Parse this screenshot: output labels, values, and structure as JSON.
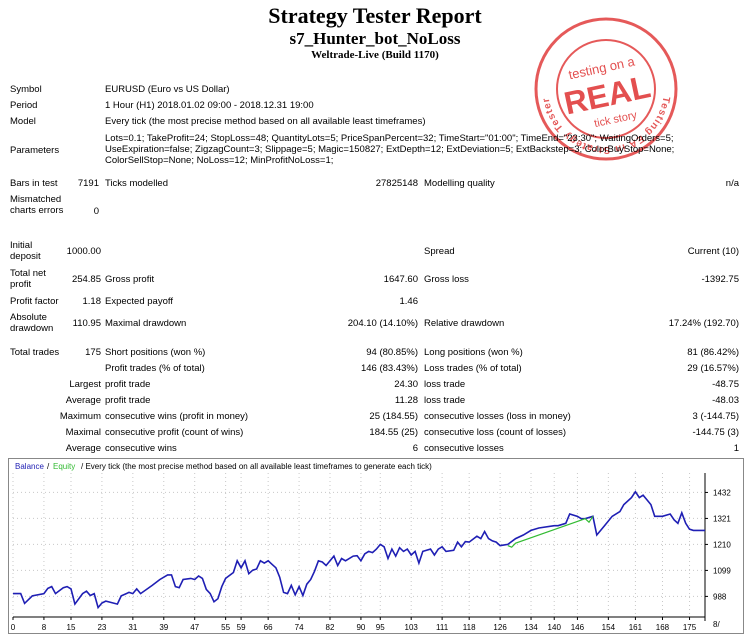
{
  "report": {
    "title": "Strategy Tester Report",
    "subtitle": "s7_Hunter_bot_NoLoss",
    "server": "Weltrade-Live (Build 1170)"
  },
  "stamp": {
    "line1": "testing on a",
    "line2": "REAL",
    "line3": "tick story",
    "ring_text": "Testing EA in Strategy Tester",
    "color": "#e03c3c"
  },
  "info": {
    "symbol_label": "Symbol",
    "symbol_value": "EURUSD (Euro vs US Dollar)",
    "period_label": "Period",
    "period_value": "1 Hour (H1) 2018.01.02 09:00 - 2018.12.31 19:00",
    "model_label": "Model",
    "model_value": "Every tick (the most precise method based on all available least timeframes)",
    "parameters_label": "Parameters",
    "parameters_value": "Lots=0.1; TakeProfit=24; StopLoss=48; QuantityLots=5; PriceSpanPercent=32; TimeStart=\"01:00\"; TimeEnd=\"23:30\"; WaitingOrders=5; UseExpiration=false; ZigzagCount=3; Slippage=5; Magic=150827; ExtDepth=12; ExtDeviation=5; ExtBackstep=3; ColorBuyStop=None; ColorSellStop=None; NoLoss=12; MinProfitNoLoss=1;",
    "bars_label": "Bars in test",
    "bars_value": "7191",
    "ticks_label": "Ticks modelled",
    "ticks_value": "27825148",
    "quality_label": "Modelling quality",
    "quality_value": "n/a",
    "mismatch_label": "Mismatched charts errors",
    "mismatch_value": "0"
  },
  "stats": {
    "deposit_label": "Initial deposit",
    "deposit_value": "1000.00",
    "spread_label": "Spread",
    "spread_value": "Current (10)",
    "net_label": "Total net profit",
    "net_value": "254.85",
    "gross_profit_label": "Gross profit",
    "gross_profit_value": "1647.60",
    "gross_loss_label": "Gross loss",
    "gross_loss_value": "-1392.75",
    "pf_label": "Profit factor",
    "pf_value": "1.18",
    "payoff_label": "Expected payoff",
    "payoff_value": "1.46",
    "absdd_label": "Absolute drawdown",
    "absdd_value": "110.95",
    "maxdd_label": "Maximal drawdown",
    "maxdd_value": "204.10 (14.10%)",
    "reldd_label": "Relative drawdown",
    "reldd_value": "17.24% (192.70)",
    "trades_label": "Total trades",
    "trades_value": "175",
    "short_label": "Short positions (won %)",
    "short_value": "94 (80.85%)",
    "long_label": "Long positions (won %)",
    "long_value": "81 (86.42%)",
    "profit_trades_label": "Profit trades (% of total)",
    "profit_trades_value": "146 (83.43%)",
    "loss_trades_label": "Loss trades (% of total)",
    "loss_trades_value": "29 (16.57%)",
    "largest_label": "Largest",
    "largest_profit_label": "profit trade",
    "largest_profit_value": "24.30",
    "largest_loss_label": "loss trade",
    "largest_loss_value": "-48.75",
    "average_label": "Average",
    "average_profit_label": "profit trade",
    "average_profit_value": "11.28",
    "average_loss_label": "loss trade",
    "average_loss_value": "-48.03",
    "maximum_label": "Maximum",
    "max_cons_wins_label": "consecutive wins (profit in money)",
    "max_cons_wins_value": "25 (184.55)",
    "max_cons_losses_label": "consecutive losses (loss in money)",
    "max_cons_losses_value": "3 (-144.75)",
    "maximal_label": "Maximal",
    "maximal_profit_label": "consecutive profit (count of wins)",
    "maximal_profit_value": "184.55 (25)",
    "maximal_loss_label": "consecutive loss (count of losses)",
    "maximal_loss_value": "-144.75 (3)",
    "avg2_label": "Average",
    "avg_cons_wins_label": "consecutive wins",
    "avg_cons_wins_value": "6",
    "avg_cons_losses_label": "consecutive losses",
    "avg_cons_losses_value": "1"
  },
  "chart_data": {
    "type": "line",
    "legend": {
      "balance": "Balance",
      "equity": "Equity",
      "rest": "/ Every tick (the most precise method based on all available least timeframes to generate each tick)"
    },
    "colors": {
      "balance": "#1f1fb4",
      "equity": "#33bb33"
    },
    "xlim": [
      0,
      179
    ],
    "ylim": [
      900,
      1515
    ],
    "x_ticks": [
      0,
      8,
      15,
      23,
      31,
      39,
      47,
      55,
      59,
      66,
      74,
      82,
      90,
      95,
      103,
      111,
      118,
      126,
      134,
      140,
      146,
      154,
      161,
      168,
      175
    ],
    "y_ticks": [
      988,
      1099,
      1210,
      1321,
      1432
    ],
    "y_axis_extra_label": "8/",
    "series": [
      {
        "name": "Balance",
        "points": [
          [
            0,
            1000
          ],
          [
            2,
            1000
          ],
          [
            3,
            958
          ],
          [
            5,
            990
          ],
          [
            8,
            1000
          ],
          [
            9,
            1022
          ],
          [
            10,
            1030
          ],
          [
            11,
            1000
          ],
          [
            13,
            1025
          ],
          [
            14,
            1030
          ],
          [
            15,
            1020
          ],
          [
            16,
            955
          ],
          [
            18,
            1000
          ],
          [
            19,
            1010
          ],
          [
            20,
            992
          ],
          [
            21,
            1000
          ],
          [
            22,
            940
          ],
          [
            23,
            960
          ],
          [
            24,
            968
          ],
          [
            27,
            955
          ],
          [
            28,
            990
          ],
          [
            30,
            1005
          ],
          [
            31,
            1000
          ],
          [
            32,
            1020
          ],
          [
            33,
            1000
          ],
          [
            36,
            1035
          ],
          [
            38,
            1060
          ],
          [
            40,
            1080
          ],
          [
            41,
            1080
          ],
          [
            42,
            1030
          ],
          [
            43,
            1025
          ],
          [
            44,
            1060
          ],
          [
            46,
            1065
          ],
          [
            47,
            1060
          ],
          [
            48,
            1075
          ],
          [
            49,
            1065
          ],
          [
            50,
            1018
          ],
          [
            51,
            1000
          ],
          [
            52,
            965
          ],
          [
            53,
            978
          ],
          [
            54,
            1030
          ],
          [
            55,
            1065
          ],
          [
            57,
            1090
          ],
          [
            58,
            1140
          ],
          [
            59,
            1110
          ],
          [
            60,
            1140
          ],
          [
            61,
            1085
          ],
          [
            62,
            1100
          ],
          [
            63,
            1105
          ],
          [
            64,
            1140
          ],
          [
            65,
            1130
          ],
          [
            66,
            1140
          ],
          [
            67,
            1125
          ],
          [
            68,
            1110
          ],
          [
            69,
            1070
          ],
          [
            70,
            1005
          ],
          [
            71,
            1000
          ],
          [
            72,
            1035
          ],
          [
            73,
            995
          ],
          [
            74,
            1030
          ],
          [
            75,
            992
          ],
          [
            76,
            1040
          ],
          [
            77,
            1060
          ],
          [
            78,
            1095
          ],
          [
            79,
            1140
          ],
          [
            80,
            1135
          ],
          [
            81,
            1120
          ],
          [
            83,
            1160
          ],
          [
            84,
            1120
          ],
          [
            85,
            1150
          ],
          [
            86,
            1140
          ],
          [
            88,
            1160
          ],
          [
            89,
            1162
          ],
          [
            90,
            1140
          ],
          [
            91,
            1170
          ],
          [
            92,
            1180
          ],
          [
            93,
            1175
          ],
          [
            94,
            1190
          ],
          [
            95,
            1210
          ],
          [
            96,
            1200
          ],
          [
            97,
            1150
          ],
          [
            98,
            1190
          ],
          [
            99,
            1160
          ],
          [
            100,
            1196
          ],
          [
            101,
            1180
          ],
          [
            102,
            1190
          ],
          [
            103,
            1165
          ],
          [
            104,
            1180
          ],
          [
            105,
            1130
          ],
          [
            106,
            1180
          ],
          [
            108,
            1190
          ],
          [
            109,
            1165
          ],
          [
            110,
            1190
          ],
          [
            111,
            1200
          ],
          [
            112,
            1180
          ],
          [
            114,
            1185
          ],
          [
            115,
            1220
          ],
          [
            116,
            1200
          ],
          [
            117,
            1222
          ],
          [
            118,
            1220
          ],
          [
            120,
            1245
          ],
          [
            121,
            1235
          ],
          [
            122,
            1265
          ],
          [
            123,
            1235
          ],
          [
            124,
            1225
          ],
          [
            125,
            1220
          ],
          [
            126,
            1205
          ],
          [
            128,
            1210
          ],
          [
            130,
            1235
          ],
          [
            132,
            1250
          ],
          [
            134,
            1270
          ],
          [
            136,
            1280
          ],
          [
            140,
            1290
          ],
          [
            141,
            1290
          ],
          [
            143,
            1300
          ],
          [
            144,
            1340
          ],
          [
            146,
            1330
          ],
          [
            147,
            1320
          ],
          [
            148,
            1320
          ],
          [
            150,
            1330
          ],
          [
            151,
            1250
          ],
          [
            153,
            1290
          ],
          [
            155,
            1330
          ],
          [
            157,
            1350
          ],
          [
            158,
            1380
          ],
          [
            160,
            1410
          ],
          [
            161,
            1435
          ],
          [
            162,
            1410
          ],
          [
            163,
            1420
          ],
          [
            164,
            1400
          ],
          [
            165,
            1380
          ],
          [
            166,
            1330
          ],
          [
            168,
            1330
          ],
          [
            170,
            1340
          ],
          [
            171,
            1315
          ],
          [
            172,
            1300
          ],
          [
            173,
            1345
          ],
          [
            174,
            1300
          ],
          [
            175,
            1275
          ],
          [
            176,
            1270
          ],
          [
            179,
            1270
          ]
        ]
      },
      {
        "name": "Equity",
        "points": [
          [
            128,
            1205
          ],
          [
            129,
            1198
          ],
          [
            130,
            1215
          ],
          [
            148,
            1320
          ],
          [
            149,
            1305
          ],
          [
            150,
            1330
          ]
        ]
      }
    ]
  }
}
